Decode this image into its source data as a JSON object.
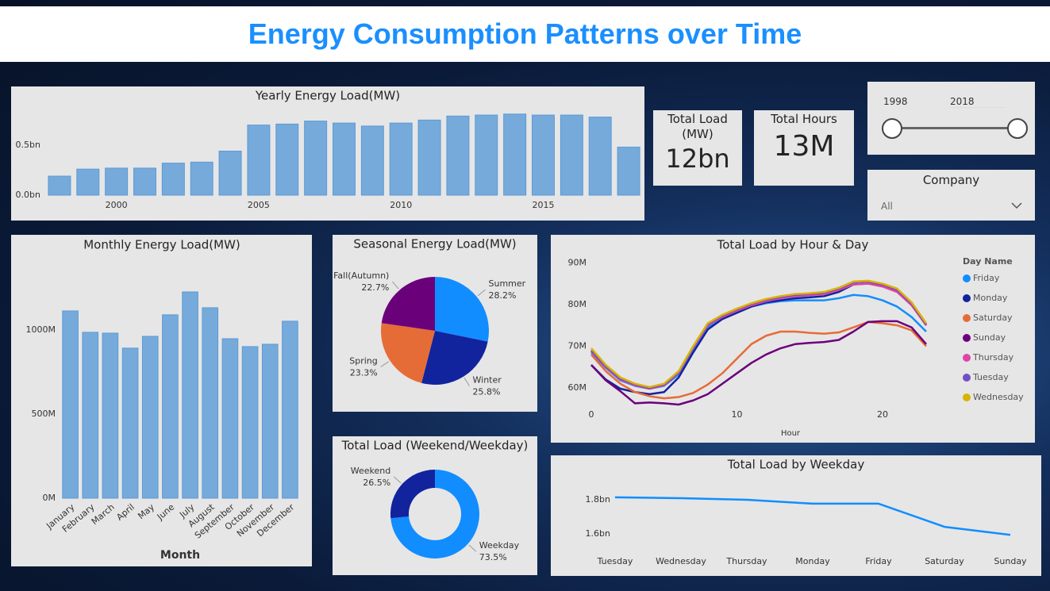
{
  "title": "Energy Consumption Patterns over Time",
  "cards": [
    {
      "label": "Total Load (MW)",
      "value": "12bn"
    },
    {
      "label": "Total Hours",
      "value": "13M"
    }
  ],
  "year_slicer": {
    "start": "1998",
    "end": "2018"
  },
  "company_filter": {
    "label": "Company",
    "value": "All"
  },
  "chart_data": [
    {
      "type": "bar",
      "title": "Yearly Energy Load(MW)",
      "x": [
        1998,
        1999,
        2000,
        2001,
        2002,
        2003,
        2004,
        2005,
        2006,
        2007,
        2008,
        2009,
        2010,
        2011,
        2012,
        2013,
        2014,
        2015,
        2016,
        2017,
        2018
      ],
      "values": [
        0.19,
        0.26,
        0.27,
        0.27,
        0.32,
        0.33,
        0.44,
        0.7,
        0.71,
        0.74,
        0.72,
        0.69,
        0.72,
        0.75,
        0.79,
        0.8,
        0.81,
        0.8,
        0.8,
        0.78,
        0.48
      ],
      "color": "#76aadb",
      "xlim": [
        1997.5,
        2018.5
      ],
      "xticks": [
        2000,
        2005,
        2010,
        2015
      ],
      "ylim": [
        0,
        0.84
      ],
      "yticks": [
        {
          "value": 0,
          "label": "0.0bn"
        },
        {
          "value": 0.5,
          "label": "0.5bn"
        }
      ]
    },
    {
      "type": "bar",
      "title": "Monthly Energy Load(MW)",
      "categories": [
        "January",
        "February",
        "March",
        "April",
        "May",
        "June",
        "July",
        "August",
        "September",
        "October",
        "November",
        "December"
      ],
      "values": [
        1113,
        986,
        981,
        892,
        962,
        1090,
        1226,
        1132,
        948,
        901,
        915,
        1052
      ],
      "color": "#76aadb",
      "x_label": "Month",
      "ylim": [
        0,
        1358
      ],
      "yticks": [
        {
          "value": 0,
          "label": "0M"
        },
        {
          "value": 500,
          "label": "500M"
        },
        {
          "value": 1000,
          "label": "1000M"
        }
      ]
    },
    {
      "type": "pie",
      "title": "Seasonal Energy Load(MW)",
      "categories": [
        "Summer",
        "Winter",
        "Spring",
        "Fall(Autumn)"
      ],
      "values": [
        28.2,
        25.8,
        23.3,
        22.7
      ],
      "value_labels": [
        "28.2%",
        "25.8%",
        "23.3%",
        "22.7%"
      ],
      "colors": [
        "#118dff",
        "#12239e",
        "#e66c37",
        "#6b007b"
      ]
    },
    {
      "type": "donut",
      "title": "Total Load (Weekend/Weekday)",
      "categories": [
        "Weekday",
        "Weekend"
      ],
      "values": [
        73.5,
        26.5
      ],
      "value_labels": [
        "73.5%",
        "26.5%"
      ],
      "colors": [
        "#118dff",
        "#12239e"
      ]
    },
    {
      "type": "line",
      "title": "Total Load by Hour & Day",
      "x": [
        0,
        1,
        2,
        3,
        4,
        5,
        6,
        7,
        8,
        9,
        10,
        11,
        12,
        13,
        14,
        15,
        16,
        17,
        18,
        19,
        20,
        21,
        22,
        23
      ],
      "x_label": "Hour",
      "legend_title": "Day Name",
      "legend": "right",
      "xlim": [
        0,
        23
      ],
      "xticks": [
        0,
        10,
        20
      ],
      "ylim": [
        56,
        91
      ],
      "yticks": [
        {
          "value": 60,
          "label": "60M"
        },
        {
          "value": 70,
          "label": "70M"
        },
        {
          "value": 80,
          "label": "80M"
        },
        {
          "value": 90,
          "label": "90M"
        }
      ],
      "series": [
        {
          "name": "Friday",
          "color": "#118dff",
          "values": [
            68.5,
            64.8,
            61.8,
            60.5,
            59.8,
            60.5,
            63.2,
            69,
            74.5,
            76.8,
            78.3,
            79.5,
            80.3,
            80.8,
            81,
            81,
            81,
            81.5,
            82.3,
            82,
            81,
            79.5,
            77,
            73.5
          ]
        },
        {
          "name": "Monday",
          "color": "#12239e",
          "values": [
            65.5,
            62,
            59.8,
            59,
            58.5,
            59,
            62.5,
            68.5,
            74,
            76.5,
            78,
            79.5,
            80.5,
            81,
            81.5,
            81.7,
            82,
            83,
            84.8,
            85,
            84.5,
            83.2,
            80,
            75
          ]
        },
        {
          "name": "Saturday",
          "color": "#e66c37",
          "values": [
            68,
            64,
            61,
            59,
            58,
            57.5,
            57.8,
            58.8,
            60.8,
            63.5,
            67,
            70.5,
            72.5,
            73.5,
            73.5,
            73.2,
            73,
            73.3,
            74.5,
            75.8,
            75.5,
            75,
            73.8,
            70
          ]
        },
        {
          "name": "Sunday",
          "color": "#6b007b",
          "values": [
            65.5,
            61.8,
            59.2,
            56.3,
            56.5,
            56.3,
            56,
            57,
            58.5,
            61,
            63.5,
            66,
            68,
            69.5,
            70.5,
            70.8,
            71,
            71.5,
            73.5,
            75.8,
            76,
            76,
            74.5,
            70.5
          ]
        },
        {
          "name": "Thursday",
          "color": "#e044a7",
          "values": [
            68.8,
            65,
            62,
            60.6,
            59.8,
            60.6,
            63.6,
            69.6,
            75,
            77,
            78.5,
            79.8,
            80.8,
            81.5,
            82,
            82.2,
            82.5,
            83.5,
            84.8,
            85,
            84.3,
            83,
            79.8,
            75
          ]
        },
        {
          "name": "Tuesday",
          "color": "#744ec2",
          "values": [
            69,
            65.2,
            62.2,
            60.8,
            60,
            60.8,
            63.8,
            69.8,
            75.3,
            77.3,
            78.8,
            80.1,
            81.1,
            81.8,
            82.3,
            82.5,
            82.8,
            83.8,
            85.3,
            85.5,
            84.8,
            83.5,
            80.2,
            75.2
          ]
        },
        {
          "name": "Wednesday",
          "color": "#d9b300",
          "values": [
            69.5,
            65.5,
            62.5,
            61,
            60.2,
            61,
            64,
            70,
            75.5,
            77.5,
            79,
            80.3,
            81.3,
            82,
            82.5,
            82.7,
            83,
            84,
            85.5,
            85.7,
            85,
            83.8,
            80.5,
            75.5
          ]
        }
      ]
    },
    {
      "type": "line",
      "title": "Total Load by Weekday",
      "categories": [
        "Tuesday",
        "Wednesday",
        "Thursday",
        "Monday",
        "Friday",
        "Saturday",
        "Sunday"
      ],
      "values": [
        1.814,
        1.809,
        1.8,
        1.777,
        1.777,
        1.642,
        1.595
      ],
      "color": "#118dff",
      "ylim": [
        1.55,
        1.92
      ],
      "yticks": [
        {
          "value": 1.6,
          "label": "1.6bn"
        },
        {
          "value": 1.8,
          "label": "1.8bn"
        }
      ]
    }
  ]
}
